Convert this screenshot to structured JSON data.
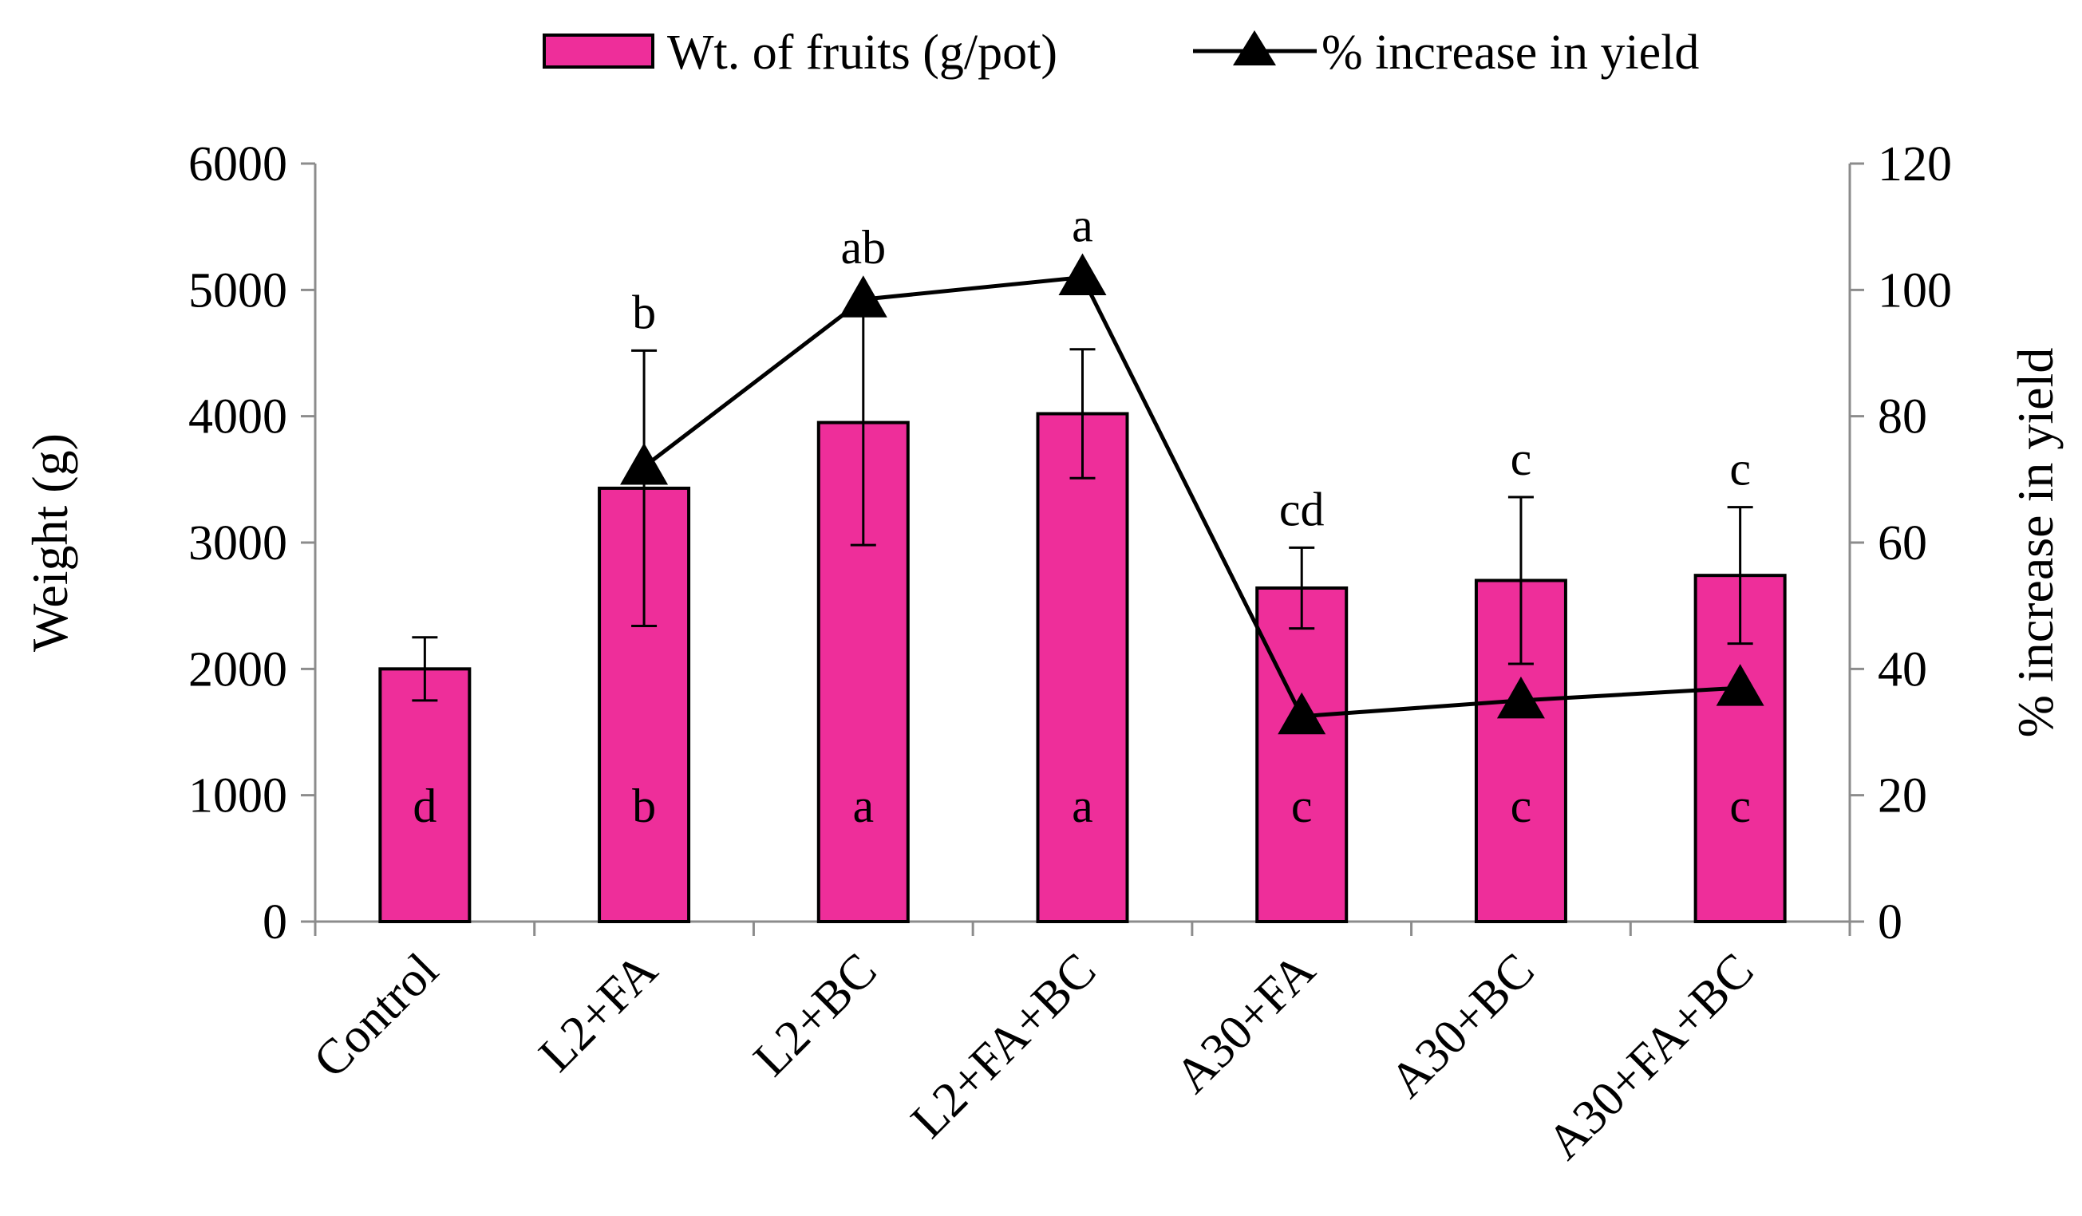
{
  "chart_data": {
    "type": "bar",
    "categories": [
      "Control",
      "L2+FA",
      "L2+BC",
      "L2+FA+BC",
      "A30+FA",
      "A30+BC",
      "A30+FA+BC"
    ],
    "series": [
      {
        "name": "Wt. of fruits (g/pot)",
        "axis": "left",
        "kind": "bar",
        "values": [
          2000,
          3430,
          3950,
          4020,
          2640,
          2700,
          2740
        ],
        "error": [
          250,
          1090,
          970,
          510,
          320,
          660,
          540
        ],
        "color": "#EE2E9A"
      },
      {
        "name": "% increase in yield",
        "axis": "right",
        "kind": "line",
        "marker": "triangle",
        "values": [
          null,
          72,
          98.5,
          102,
          32.5,
          35,
          37
        ],
        "color": "#000000"
      }
    ],
    "letters_top": [
      "",
      "b",
      "ab",
      "a",
      "cd",
      "c",
      "c"
    ],
    "letters_bar": [
      "d",
      "b",
      "a",
      "a",
      "c",
      "c",
      "c"
    ],
    "ylabel": "Weight (g)",
    "ylabel_right": "% increase in yield",
    "ylim": [
      0,
      6000
    ],
    "yticks": [
      0,
      1000,
      2000,
      3000,
      4000,
      5000,
      6000
    ],
    "ylim_right": [
      0,
      120
    ],
    "yticks_right": [
      0,
      20,
      40,
      60,
      80,
      100,
      120
    ],
    "legend_position": "top",
    "grid": false
  }
}
